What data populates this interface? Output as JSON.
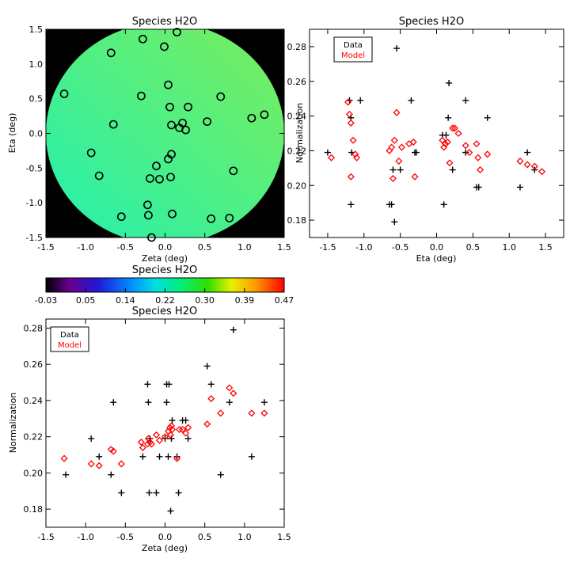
{
  "chart_data": [
    {
      "type": "map",
      "title": "Species H2O",
      "xlabel": "Zeta (deg)",
      "ylabel": "Eta (deg)",
      "xlim": [
        -1.5,
        1.5
      ],
      "ylim": [
        -1.5,
        1.5
      ],
      "xticks": [
        "-1.5",
        "-1.0",
        "-0.5",
        "0.0",
        "0.5",
        "1.0",
        "1.5"
      ],
      "yticks": [
        "-1.5",
        "-1.0",
        "-0.5",
        "0.0",
        "0.5",
        "1.0",
        "1.5"
      ],
      "colors": {
        "background": "#000000",
        "field_low": "#22f0b0",
        "field_high": "#7cee5a",
        "marker": "#000000"
      },
      "points": [
        {
          "x": 0.15,
          "y": 1.46
        },
        {
          "x": -0.28,
          "y": 1.36
        },
        {
          "x": -0.01,
          "y": 1.25
        },
        {
          "x": -0.68,
          "y": 1.16
        },
        {
          "x": -1.27,
          "y": 0.57
        },
        {
          "x": 0.04,
          "y": 0.7
        },
        {
          "x": -0.3,
          "y": 0.54
        },
        {
          "x": 0.7,
          "y": 0.53
        },
        {
          "x": 0.06,
          "y": 0.38
        },
        {
          "x": 0.29,
          "y": 0.38
        },
        {
          "x": 1.25,
          "y": 0.27
        },
        {
          "x": 1.09,
          "y": 0.22
        },
        {
          "x": 0.22,
          "y": 0.15
        },
        {
          "x": 0.08,
          "y": 0.12
        },
        {
          "x": 0.53,
          "y": 0.17
        },
        {
          "x": 0.18,
          "y": 0.08
        },
        {
          "x": 0.26,
          "y": 0.05
        },
        {
          "x": -0.65,
          "y": 0.13
        },
        {
          "x": -0.93,
          "y": -0.28
        },
        {
          "x": 0.08,
          "y": -0.3
        },
        {
          "x": 0.04,
          "y": -0.37
        },
        {
          "x": -0.11,
          "y": -0.47
        },
        {
          "x": 0.86,
          "y": -0.54
        },
        {
          "x": -0.83,
          "y": -0.61
        },
        {
          "x": -0.19,
          "y": -0.65
        },
        {
          "x": -0.07,
          "y": -0.66
        },
        {
          "x": 0.07,
          "y": -0.63
        },
        {
          "x": -0.22,
          "y": -1.03
        },
        {
          "x": -0.21,
          "y": -1.18
        },
        {
          "x": 0.09,
          "y": -1.16
        },
        {
          "x": -0.55,
          "y": -1.2
        },
        {
          "x": 0.58,
          "y": -1.23
        },
        {
          "x": 0.81,
          "y": -1.22
        },
        {
          "x": -0.17,
          "y": -1.5
        }
      ]
    },
    {
      "type": "colorbar",
      "title": "Species H2O",
      "tick_labels": [
        "-0.03",
        "0.05",
        "0.14",
        "0.22",
        "0.30",
        "0.39",
        "0.47"
      ],
      "range": [
        -0.03,
        0.47
      ]
    },
    {
      "type": "scatter",
      "title": "Species H2O",
      "xlabel": "Eta (deg)",
      "ylabel": "Normalization",
      "xlim": [
        -1.75,
        1.75
      ],
      "ylim": [
        0.17,
        0.29
      ],
      "xticks": [
        "-1.5",
        "-1.0",
        "-0.5",
        "0.0",
        "0.5",
        "1.0",
        "1.5"
      ],
      "yticks": [
        "0.18",
        "0.20",
        "0.22",
        "0.24",
        "0.26",
        "0.28"
      ],
      "legend": {
        "position": "top-left",
        "entries": [
          "Data",
          "Model"
        ]
      },
      "series": [
        {
          "name": "Data",
          "marker": "plus",
          "color": "#000000",
          "points": [
            [
              -1.5,
              0.219
            ],
            [
              -1.2,
              0.249
            ],
            [
              -1.18,
              0.239
            ],
            [
              -1.17,
              0.219
            ],
            [
              -1.18,
              0.189
            ],
            [
              -1.05,
              0.249
            ],
            [
              -0.65,
              0.189
            ],
            [
              -0.62,
              0.189
            ],
            [
              -0.6,
              0.209
            ],
            [
              -0.58,
              0.179
            ],
            [
              -0.55,
              0.279
            ],
            [
              -0.5,
              0.209
            ],
            [
              -0.35,
              0.249
            ],
            [
              -0.3,
              0.219
            ],
            [
              -0.28,
              0.219
            ],
            [
              0.08,
              0.229
            ],
            [
              0.1,
              0.189
            ],
            [
              0.13,
              0.229
            ],
            [
              0.16,
              0.239
            ],
            [
              0.17,
              0.259
            ],
            [
              0.22,
              0.209
            ],
            [
              0.4,
              0.249
            ],
            [
              0.4,
              0.219
            ],
            [
              0.55,
              0.199
            ],
            [
              0.58,
              0.199
            ],
            [
              0.7,
              0.239
            ],
            [
              1.15,
              0.199
            ],
            [
              1.25,
              0.219
            ],
            [
              1.35,
              0.209
            ]
          ]
        },
        {
          "name": "Model",
          "marker": "diamond",
          "color": "#ff0000",
          "points": [
            [
              -1.45,
              0.216
            ],
            [
              -1.22,
              0.248
            ],
            [
              -1.2,
              0.241
            ],
            [
              -1.18,
              0.236
            ],
            [
              -1.18,
              0.205
            ],
            [
              -1.15,
              0.226
            ],
            [
              -1.12,
              0.218
            ],
            [
              -1.1,
              0.216
            ],
            [
              -0.65,
              0.22
            ],
            [
              -0.62,
              0.222
            ],
            [
              -0.6,
              0.204
            ],
            [
              -0.58,
              0.226
            ],
            [
              -0.55,
              0.242
            ],
            [
              -0.52,
              0.214
            ],
            [
              -0.48,
              0.222
            ],
            [
              -0.38,
              0.224
            ],
            [
              -0.32,
              0.225
            ],
            [
              -0.3,
              0.205
            ],
            [
              0.08,
              0.226
            ],
            [
              0.1,
              0.222
            ],
            [
              0.12,
              0.224
            ],
            [
              0.15,
              0.225
            ],
            [
              0.18,
              0.213
            ],
            [
              0.22,
              0.233
            ],
            [
              0.25,
              0.233
            ],
            [
              0.3,
              0.23
            ],
            [
              0.4,
              0.223
            ],
            [
              0.45,
              0.219
            ],
            [
              0.55,
              0.224
            ],
            [
              0.57,
              0.216
            ],
            [
              0.6,
              0.209
            ],
            [
              0.7,
              0.218
            ],
            [
              1.15,
              0.214
            ],
            [
              1.25,
              0.212
            ],
            [
              1.35,
              0.211
            ],
            [
              1.45,
              0.208
            ]
          ]
        }
      ]
    },
    {
      "type": "scatter",
      "title": "Species H2O",
      "xlabel": "Zeta (deg)",
      "ylabel": "Normalization",
      "xlim": [
        -1.5,
        1.5
      ],
      "ylim": [
        0.17,
        0.285
      ],
      "xticks": [
        "-1.5",
        "-1.0",
        "-0.5",
        "0.0",
        "0.5",
        "1.0",
        "1.5"
      ],
      "yticks": [
        "0.18",
        "0.20",
        "0.22",
        "0.24",
        "0.26",
        "0.28"
      ],
      "legend": {
        "position": "top-left",
        "entries": [
          "Data",
          "Model"
        ]
      },
      "series": [
        {
          "name": "Data",
          "marker": "plus",
          "color": "#000000",
          "points": [
            [
              -1.25,
              0.199
            ],
            [
              -0.93,
              0.219
            ],
            [
              -0.83,
              0.209
            ],
            [
              -0.68,
              0.199
            ],
            [
              -0.65,
              0.239
            ],
            [
              -0.55,
              0.189
            ],
            [
              -0.28,
              0.209
            ],
            [
              -0.22,
              0.249
            ],
            [
              -0.21,
              0.239
            ],
            [
              -0.19,
              0.219
            ],
            [
              -0.2,
              0.189
            ],
            [
              -0.11,
              0.189
            ],
            [
              -0.07,
              0.209
            ],
            [
              0.0,
              0.219
            ],
            [
              0.02,
              0.239
            ],
            [
              0.02,
              0.249
            ],
            [
              0.04,
              0.209
            ],
            [
              0.05,
              0.249
            ],
            [
              0.07,
              0.179
            ],
            [
              0.08,
              0.219
            ],
            [
              0.09,
              0.229
            ],
            [
              0.15,
              0.209
            ],
            [
              0.17,
              0.189
            ],
            [
              0.22,
              0.229
            ],
            [
              0.26,
              0.229
            ],
            [
              0.29,
              0.219
            ],
            [
              0.53,
              0.259
            ],
            [
              0.58,
              0.249
            ],
            [
              0.7,
              0.199
            ],
            [
              0.81,
              0.239
            ],
            [
              0.86,
              0.279
            ],
            [
              1.09,
              0.209
            ],
            [
              1.25,
              0.239
            ]
          ]
        },
        {
          "name": "Model",
          "marker": "diamond",
          "color": "#ff0000",
          "points": [
            [
              -1.27,
              0.208
            ],
            [
              -0.93,
              0.205
            ],
            [
              -0.83,
              0.204
            ],
            [
              -0.68,
              0.213
            ],
            [
              -0.65,
              0.212
            ],
            [
              -0.55,
              0.205
            ],
            [
              -0.3,
              0.217
            ],
            [
              -0.28,
              0.214
            ],
            [
              -0.22,
              0.216
            ],
            [
              -0.21,
              0.219
            ],
            [
              -0.19,
              0.217
            ],
            [
              -0.17,
              0.216
            ],
            [
              -0.11,
              0.221
            ],
            [
              -0.07,
              0.218
            ],
            [
              0.0,
              0.22
            ],
            [
              0.04,
              0.223
            ],
            [
              0.06,
              0.225
            ],
            [
              0.07,
              0.221
            ],
            [
              0.08,
              0.226
            ],
            [
              0.09,
              0.224
            ],
            [
              0.15,
              0.208
            ],
            [
              0.18,
              0.224
            ],
            [
              0.22,
              0.224
            ],
            [
              0.26,
              0.222
            ],
            [
              0.29,
              0.225
            ],
            [
              0.53,
              0.227
            ],
            [
              0.58,
              0.241
            ],
            [
              0.7,
              0.233
            ],
            [
              0.81,
              0.247
            ],
            [
              0.86,
              0.244
            ],
            [
              1.09,
              0.233
            ],
            [
              1.25,
              0.233
            ]
          ]
        }
      ]
    }
  ]
}
